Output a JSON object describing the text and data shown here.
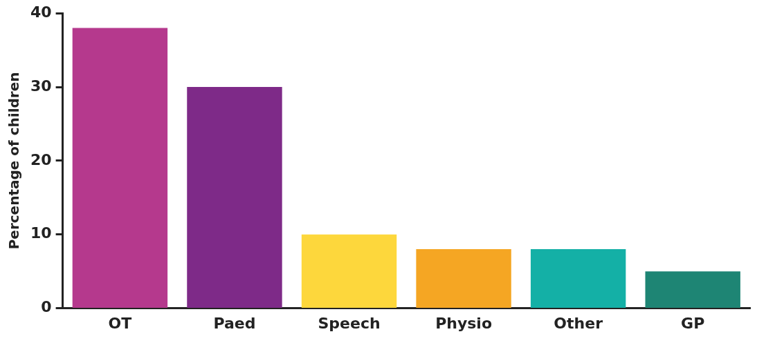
{
  "chart_data": {
    "type": "bar",
    "ylabel": "Percentage of children",
    "categories": [
      "OT",
      "Paed",
      "Speech",
      "Physio",
      "Other",
      "GP"
    ],
    "values": [
      38,
      30,
      10,
      8,
      8,
      5
    ],
    "colors": [
      "#b5398d",
      "#7e2a88",
      "#fdd73c",
      "#f5a623",
      "#14b0a6",
      "#1e8574"
    ],
    "ylim": [
      0,
      40
    ],
    "yticks": [
      0,
      10,
      20,
      30,
      40
    ],
    "grid": false,
    "legend": false
  }
}
